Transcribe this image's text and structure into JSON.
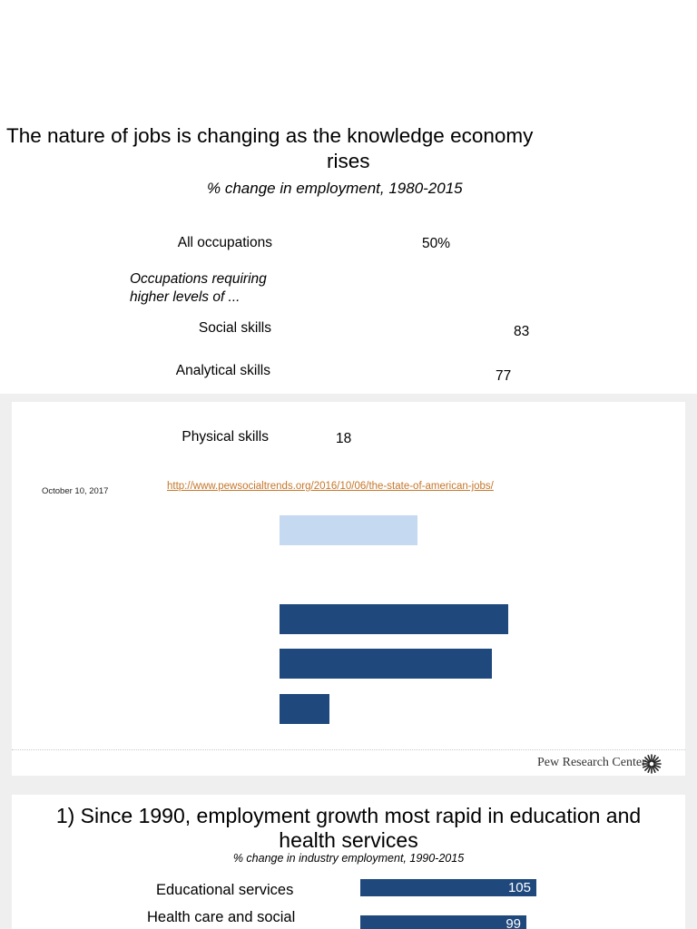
{
  "slide1": {
    "title_line1": "The nature of jobs is changing as the knowledge economy",
    "title_line2": "rises",
    "subtitle": "% change in employment, 1980-2015",
    "group_note_line1": "Occupations requiring",
    "group_note_line2": "higher levels of ...",
    "date": "October 10, 2017",
    "url": "http://www.pewsocialtrends.org/2016/10/06/the-state-of-american-jobs/",
    "brand": "Pew Research Center"
  },
  "chart_data": [
    {
      "type": "bar",
      "orientation": "horizontal",
      "title": "The nature of jobs is changing as the knowledge economy rises",
      "subtitle": "% change in employment, 1980-2015",
      "categories": [
        "All occupations",
        "Social skills",
        "Analytical skills",
        "Physical skills"
      ],
      "values": [
        50,
        83,
        77,
        18
      ],
      "value_labels": [
        "50%",
        "83",
        "77",
        "18"
      ],
      "colors": [
        "#c5d9f1",
        "#1f497d",
        "#1f497d",
        "#1f497d"
      ]
    },
    {
      "type": "bar",
      "orientation": "horizontal",
      "title": "1) Since 1990, employment growth most rapid in education and health services",
      "subtitle": "% change in industry employment, 1990-2015",
      "categories": [
        "Educational services",
        "Health care and social"
      ],
      "values": [
        105,
        99
      ],
      "value_labels": [
        "105",
        "99"
      ],
      "colors": [
        "#1f497d",
        "#1f497d"
      ]
    }
  ],
  "slide2": {
    "title_line1": "1) Since 1990, employment growth most rapid in education and",
    "title_line2": "health services",
    "subtitle": "% change in industry employment, 1990-2015"
  },
  "icons": {
    "brand_logo": "pew-sunburst-icon"
  }
}
